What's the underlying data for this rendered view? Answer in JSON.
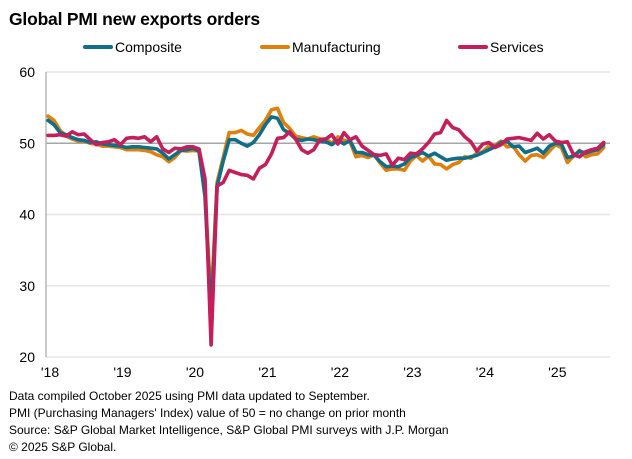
{
  "chart_data": {
    "type": "line",
    "title": "Global PMI new exports orders",
    "xlabel": "",
    "ylabel": "",
    "ylim": [
      20,
      60
    ],
    "yticks": [
      20,
      30,
      40,
      50,
      60
    ],
    "grid": true,
    "reference_line": 50,
    "legend_position": "top",
    "x_start": "2018-01",
    "x_end": "2025-09",
    "frequency": "monthly",
    "xtick_labels": [
      "'18",
      "'19",
      "'20",
      "'21",
      "'22",
      "'23",
      "'24",
      "'25"
    ],
    "series": [
      {
        "name": "Composite",
        "color": "#0f6e8a",
        "values": [
          53.2,
          52.6,
          51.5,
          51.2,
          50.8,
          50.5,
          50.4,
          50.1,
          50.2,
          49.9,
          49.8,
          49.7,
          49.6,
          49.4,
          49.5,
          49.5,
          49.4,
          49.3,
          49.2,
          48.6,
          47.8,
          48.4,
          49.0,
          49.1,
          49.3,
          48.9,
          42.5,
          25.5,
          44.0,
          47.5,
          50.5,
          50.5,
          50.0,
          49.6,
          50.1,
          51.2,
          52.6,
          53.7,
          53.5,
          51.9,
          51.4,
          50.6,
          50.4,
          50.6,
          50.5,
          50.3,
          50.2,
          49.8,
          50.4,
          49.9,
          50.4,
          48.7,
          48.7,
          48.4,
          48.3,
          47.4,
          46.7,
          46.8,
          46.7,
          47.1,
          48.0,
          48.3,
          48.7,
          48.2,
          48.6,
          48.1,
          47.6,
          47.8,
          47.9,
          47.9,
          48.1,
          48.3,
          48.7,
          49.1,
          49.5,
          50.1,
          50.3,
          49.5,
          49.6,
          48.7,
          49.0,
          49.3,
          48.6,
          49.6,
          50.0,
          49.9,
          48.0,
          48.2,
          48.9,
          48.6,
          48.9,
          49.1,
          49.8
        ]
      },
      {
        "name": "Manufacturing",
        "color": "#e07f0b",
        "values": [
          53.8,
          53.2,
          51.8,
          51.0,
          50.6,
          50.3,
          50.3,
          50.0,
          49.9,
          49.6,
          49.6,
          49.5,
          49.4,
          49.1,
          49.1,
          49.1,
          49.0,
          48.8,
          48.4,
          48.1,
          47.4,
          48.0,
          49.0,
          48.9,
          49.0,
          48.9,
          43.2,
          27.5,
          44.5,
          48.0,
          51.5,
          51.5,
          51.8,
          51.3,
          51.1,
          52.2,
          53.2,
          54.7,
          54.9,
          52.9,
          52.1,
          51.0,
          50.8,
          50.6,
          50.9,
          50.6,
          50.6,
          50.0,
          50.9,
          50.4,
          50.2,
          48.1,
          48.3,
          48.0,
          48.4,
          47.2,
          46.2,
          46.4,
          46.4,
          46.2,
          47.5,
          48.3,
          47.5,
          48.2,
          47.1,
          47.0,
          46.4,
          47.0,
          47.3,
          48.1,
          47.9,
          48.6,
          48.8,
          49.6,
          49.7,
          50.3,
          49.5,
          49.6,
          48.4,
          47.5,
          48.3,
          48.4,
          48.0,
          48.9,
          49.8,
          49.4,
          47.3,
          48.2,
          49.0,
          48.1,
          48.4,
          48.5,
          49.4
        ]
      },
      {
        "name": "Services",
        "color": "#c41e5b",
        "values": [
          51.1,
          51.1,
          51.2,
          51.0,
          51.6,
          51.2,
          51.3,
          50.5,
          49.8,
          50.1,
          50.2,
          50.5,
          49.8,
          50.7,
          50.8,
          50.7,
          50.9,
          50.2,
          50.9,
          49.2,
          48.7,
          49.3,
          49.2,
          49.5,
          49.5,
          49.2,
          45.0,
          21.7,
          44.0,
          44.5,
          46.2,
          45.9,
          45.6,
          45.5,
          45.0,
          46.5,
          47.0,
          48.5,
          50.7,
          50.8,
          51.6,
          50.6,
          49.1,
          48.6,
          49.1,
          50.5,
          50.6,
          51.2,
          49.9,
          51.5,
          50.5,
          50.9,
          49.6,
          49.0,
          48.4,
          48.3,
          48.5,
          46.9,
          47.9,
          47.7,
          48.6,
          48.5,
          49.2,
          50.1,
          51.3,
          51.5,
          53.2,
          52.2,
          51.9,
          50.9,
          50.2,
          48.9,
          49.9,
          50.1,
          49.4,
          49.8,
          50.6,
          50.7,
          50.8,
          50.6,
          50.4,
          51.4,
          50.6,
          51.2,
          50.3,
          50.1,
          50.2,
          48.4,
          48.1,
          48.8,
          49.1,
          49.3,
          50.1
        ]
      }
    ]
  },
  "footnotes": [
    "Data compiled October 2025 using PMI data updated to September.",
    "PMI (Purchasing Managers' Index) value of 50 = no change on prior month",
    "Source: S&P Global Market Intelligence, S&P Global PMI surveys with J.P. Morgan",
    "© 2025 S&P Global."
  ]
}
